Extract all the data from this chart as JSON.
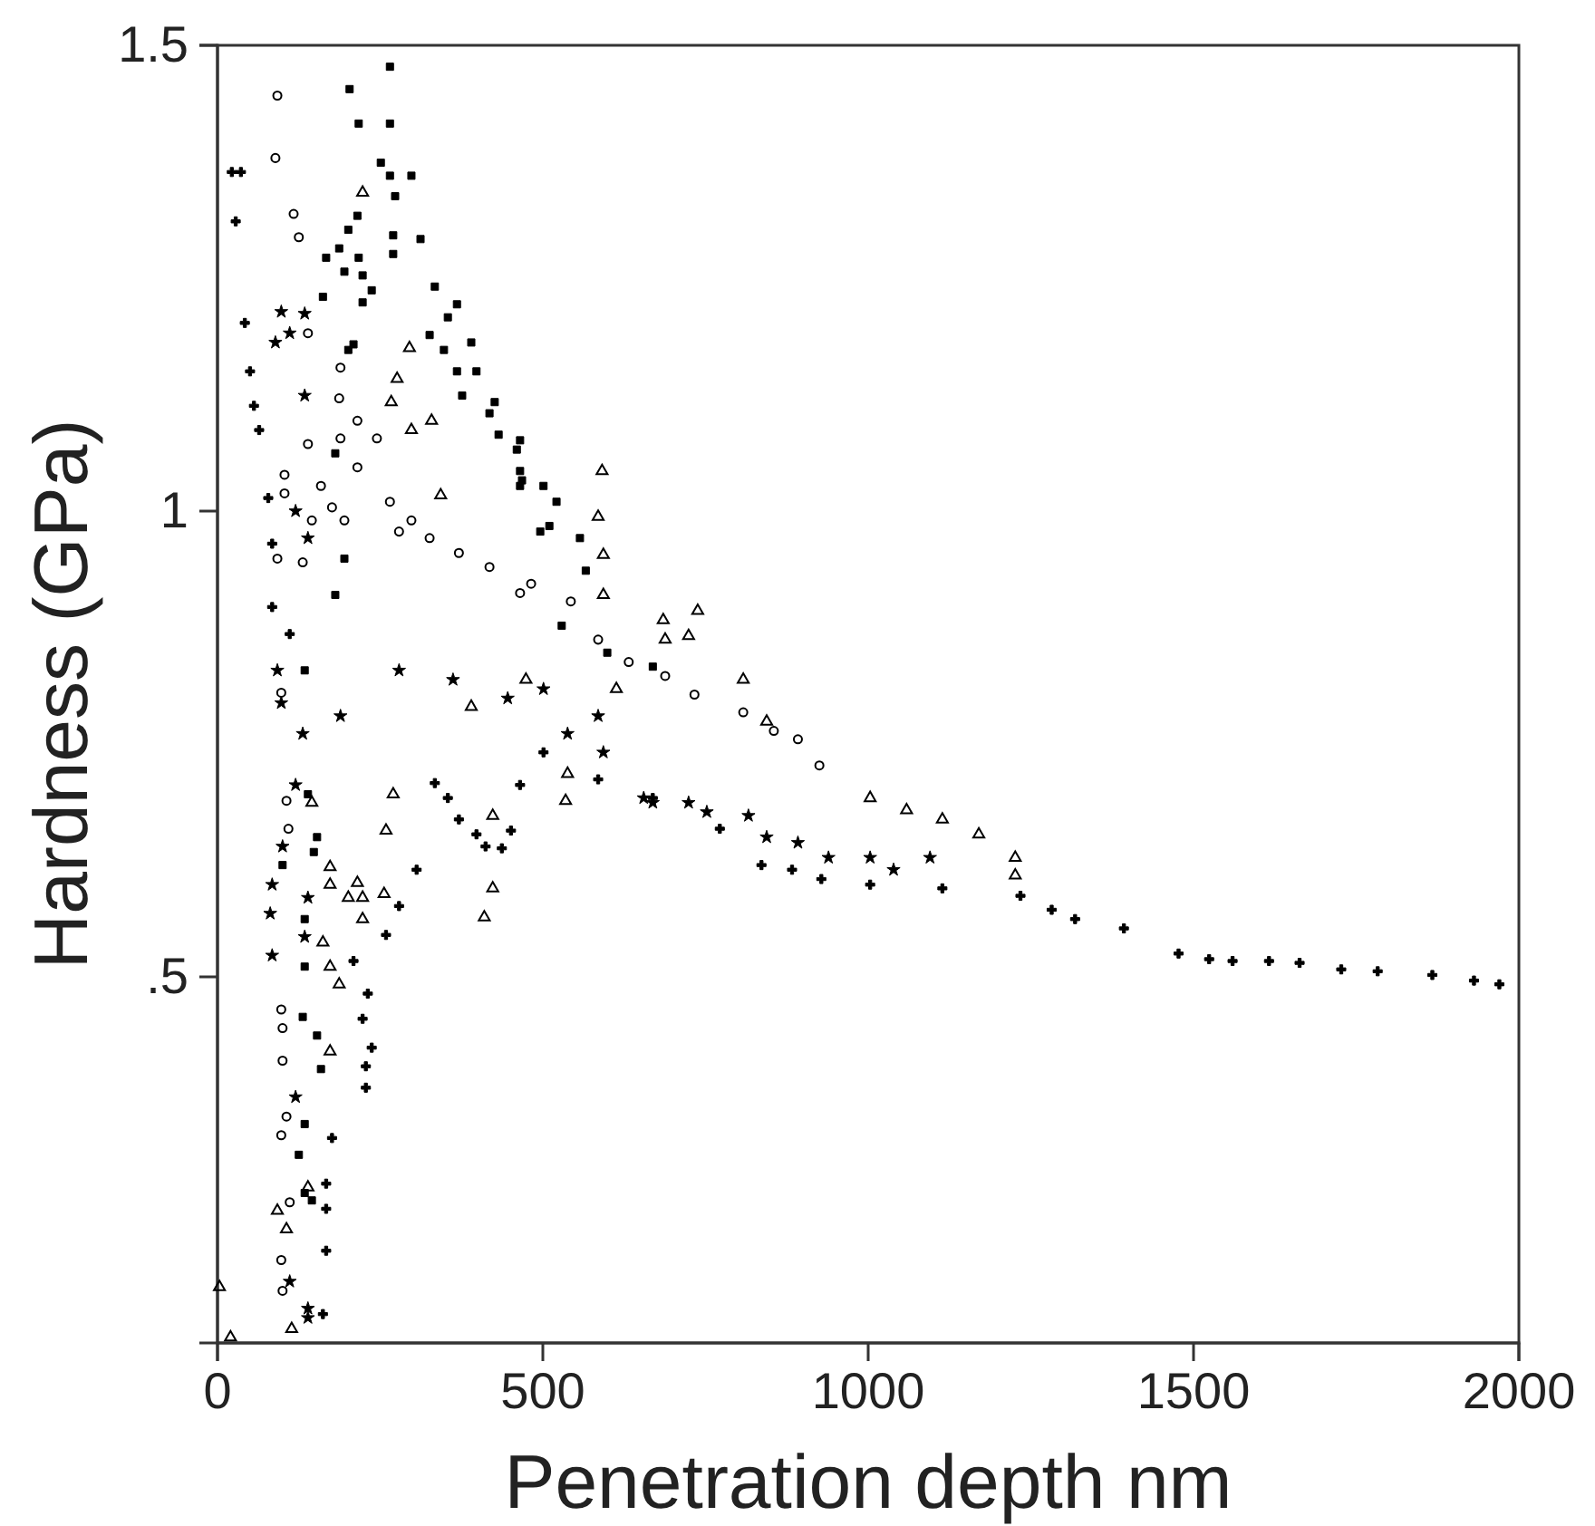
{
  "chart_data": {
    "type": "scatter",
    "xlabel": "Penetration depth nm",
    "ylabel": "Hardness (GPa)",
    "xlim": [
      0,
      2000
    ],
    "xticks": [
      0,
      500,
      1000,
      1500,
      2000
    ],
    "ylim": [
      0.107,
      1.5
    ],
    "yticks": [
      {
        "value": 0.5,
        "label": ".5"
      },
      1,
      1.5
    ],
    "series": [
      {
        "color": "#000000",
        "marker": "cross",
        "x": [
          22,
          36,
          28,
          42,
          50,
          56,
          64,
          78,
          84,
          84,
          111,
          162,
          167,
          167,
          167,
          176,
          228,
          228,
          237,
          223,
          231,
          209,
          259,
          279,
          306,
          334,
          354,
          371,
          398,
          412,
          437,
          451,
          465,
          501,
          585,
          669,
          772,
          836,
          883,
          928,
          1003,
          1114,
          1234,
          1282,
          1318,
          1393,
          1477,
          1524,
          1560,
          1616,
          1663,
          1727,
          1783,
          1867,
          1931,
          1970
        ],
        "values": [
          1.364,
          1.364,
          1.311,
          1.202,
          1.15,
          1.113,
          1.087,
          1.014,
          0.965,
          0.897,
          0.868,
          0.138,
          0.206,
          0.251,
          0.278,
          0.327,
          0.381,
          0.404,
          0.424,
          0.455,
          0.482,
          0.517,
          0.545,
          0.576,
          0.615,
          0.708,
          0.692,
          0.669,
          0.653,
          0.64,
          0.638,
          0.657,
          0.706,
          0.741,
          0.712,
          0.692,
          0.659,
          0.62,
          0.615,
          0.605,
          0.599,
          0.595,
          0.587,
          0.572,
          0.562,
          0.552,
          0.525,
          0.519,
          0.517,
          0.517,
          0.515,
          0.508,
          0.506,
          0.502,
          0.496,
          0.492
        ]
      },
      {
        "color": "#000000",
        "marker": "circle",
        "x": [
          92,
          89,
          117,
          125,
          139,
          189,
          187,
          215,
          139,
          189,
          245,
          103,
          103,
          159,
          215,
          176,
          195,
          145,
          92,
          131,
          265,
          279,
          298,
          326,
          371,
          418,
          465,
          482,
          543,
          585,
          632,
          688,
          733,
          808,
          855,
          892,
          925,
          98,
          106,
          109,
          98,
          100,
          100,
          106,
          98,
          111,
          98,
          100
        ],
        "values": [
          1.446,
          1.379,
          1.319,
          1.294,
          1.191,
          1.154,
          1.121,
          1.097,
          1.072,
          1.078,
          1.078,
          1.039,
          1.019,
          1.027,
          1.047,
          1.004,
          0.99,
          0.99,
          0.949,
          0.945,
          1.01,
          0.978,
          0.99,
          0.971,
          0.955,
          0.94,
          0.912,
          0.922,
          0.903,
          0.862,
          0.838,
          0.823,
          0.803,
          0.784,
          0.764,
          0.755,
          0.727,
          0.805,
          0.689,
          0.659,
          0.465,
          0.445,
          0.41,
          0.35,
          0.33,
          0.258,
          0.196,
          0.163
        ]
      },
      {
        "color": "#000000",
        "marker": "square",
        "x": [
          265,
          203,
          217,
          265,
          251,
          265,
          298,
          273,
          215,
          270,
          201,
          312,
          187,
          217,
          270,
          167,
          195,
          223,
          237,
          162,
          223,
          334,
          368,
          354,
          326,
          348,
          390,
          368,
          398,
          376,
          426,
          418,
          432,
          465,
          460,
          465,
          465,
          209,
          201,
          181,
          195,
          181,
          496,
          468,
          501,
          521,
          510,
          557,
          566,
          529,
          599,
          669,
          134,
          139,
          153,
          148,
          100,
          134,
          134,
          131,
          153,
          159,
          134,
          125,
          134,
          145
        ],
        "values": [
          1.477,
          1.453,
          1.416,
          1.416,
          1.374,
          1.36,
          1.36,
          1.338,
          1.317,
          1.296,
          1.302,
          1.292,
          1.282,
          1.272,
          1.276,
          1.272,
          1.257,
          1.253,
          1.237,
          1.23,
          1.224,
          1.241,
          1.222,
          1.208,
          1.189,
          1.173,
          1.181,
          1.15,
          1.15,
          1.124,
          1.117,
          1.105,
          1.082,
          1.076,
          1.066,
          1.043,
          1.027,
          1.179,
          1.173,
          1.062,
          0.949,
          0.91,
          0.978,
          1.033,
          1.027,
          1.01,
          0.984,
          0.971,
          0.936,
          0.877,
          0.848,
          0.833,
          0.829,
          0.696,
          0.65,
          0.634,
          0.62,
          0.562,
          0.511,
          0.457,
          0.437,
          0.401,
          0.342,
          0.309,
          0.268,
          0.26
        ]
      },
      {
        "color": "#000000",
        "marker": "star",
        "x": [
          98,
          111,
          89,
          134,
          134,
          120,
          139,
          92,
          98,
          131,
          189,
          120,
          100,
          84,
          139,
          81,
          134,
          84,
          120,
          111,
          139,
          139,
          279,
          362,
          446,
          501,
          585,
          538,
          593,
          655,
          669,
          724,
          752,
          816,
          844,
          892,
          939,
          1003,
          1039,
          1095
        ],
        "values": [
          1.214,
          1.191,
          1.181,
          1.212,
          1.124,
          1.0,
          0.971,
          0.829,
          0.794,
          0.761,
          0.78,
          0.706,
          0.64,
          0.599,
          0.585,
          0.568,
          0.543,
          0.523,
          0.371,
          0.173,
          0.144,
          0.134,
          0.829,
          0.819,
          0.799,
          0.809,
          0.78,
          0.761,
          0.741,
          0.692,
          0.687,
          0.687,
          0.677,
          0.673,
          0.65,
          0.644,
          0.628,
          0.628,
          0.615,
          0.628
        ]
      },
      {
        "color": "#000000",
        "marker": "triangle",
        "x": [
          223,
          295,
          276,
          267,
          329,
          298,
          343,
          3,
          20,
          114,
          92,
          106,
          139,
          173,
          187,
          173,
          162,
          223,
          256,
          223,
          201,
          173,
          173,
          215,
          259,
          270,
          423,
          410,
          423,
          145,
          591,
          585,
          593,
          593,
          685,
          688,
          738,
          724,
          808,
          844,
          538,
          535,
          1003,
          1059,
          1114,
          1170,
          1226,
          1226,
          390,
          474,
          613
        ],
        "values": [
          1.342,
          1.175,
          1.142,
          1.117,
          1.097,
          1.087,
          1.017,
          0.167,
          0.113,
          0.122,
          0.249,
          0.229,
          0.274,
          0.42,
          0.492,
          0.511,
          0.537,
          0.562,
          0.589,
          0.585,
          0.585,
          0.599,
          0.618,
          0.601,
          0.657,
          0.696,
          0.595,
          0.564,
          0.673,
          0.687,
          1.043,
          0.994,
          0.953,
          0.91,
          0.883,
          0.862,
          0.893,
          0.866,
          0.819,
          0.774,
          0.718,
          0.689,
          0.692,
          0.679,
          0.669,
          0.653,
          0.628,
          0.609,
          0.79,
          0.819,
          0.809
        ]
      }
    ]
  }
}
